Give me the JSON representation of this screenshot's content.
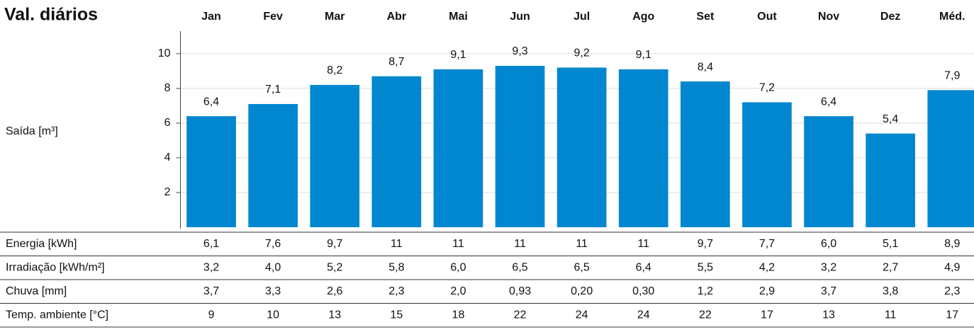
{
  "chart_data": {
    "type": "bar",
    "title": "Val. diários",
    "ylabel": "Saída [m³]",
    "categories": [
      "Jan",
      "Fev",
      "Mar",
      "Abr",
      "Mai",
      "Jun",
      "Jul",
      "Ago",
      "Set",
      "Out",
      "Nov",
      "Dez",
      "Méd."
    ],
    "values": [
      6.4,
      7.1,
      8.2,
      8.7,
      9.1,
      9.3,
      9.2,
      9.1,
      8.4,
      7.2,
      6.4,
      5.4,
      7.9
    ],
    "value_labels": [
      "6,4",
      "7,1",
      "8,2",
      "8,7",
      "9,1",
      "9,3",
      "9,2",
      "9,1",
      "8,4",
      "7,2",
      "6,4",
      "5,4",
      "7,9"
    ],
    "color": "#0087cf",
    "ylim": [
      0,
      11.3
    ],
    "yticks": [
      2,
      4,
      6,
      8,
      10
    ],
    "grid": true
  },
  "table": {
    "rows": [
      {
        "label": "Energia [kWh]",
        "values": [
          "6,1",
          "7,6",
          "9,7",
          "11",
          "11",
          "11",
          "11",
          "11",
          "9,7",
          "7,7",
          "6,0",
          "5,1",
          "8,9"
        ]
      },
      {
        "label": "Irradiação [kWh/m²]",
        "values": [
          "3,2",
          "4,0",
          "5,2",
          "5,8",
          "6,0",
          "6,5",
          "6,5",
          "6,4",
          "5,5",
          "4,2",
          "3,2",
          "2,7",
          "4,9"
        ]
      },
      {
        "label": "Chuva [mm]",
        "values": [
          "3,7",
          "3,3",
          "2,6",
          "2,3",
          "2,0",
          "0,93",
          "0,20",
          "0,30",
          "1,2",
          "2,9",
          "3,7",
          "3,8",
          "2,3"
        ]
      },
      {
        "label": "Temp. ambiente [°C]",
        "values": [
          "9",
          "10",
          "13",
          "15",
          "18",
          "22",
          "24",
          "24",
          "22",
          "17",
          "13",
          "11",
          "17"
        ]
      }
    ]
  }
}
